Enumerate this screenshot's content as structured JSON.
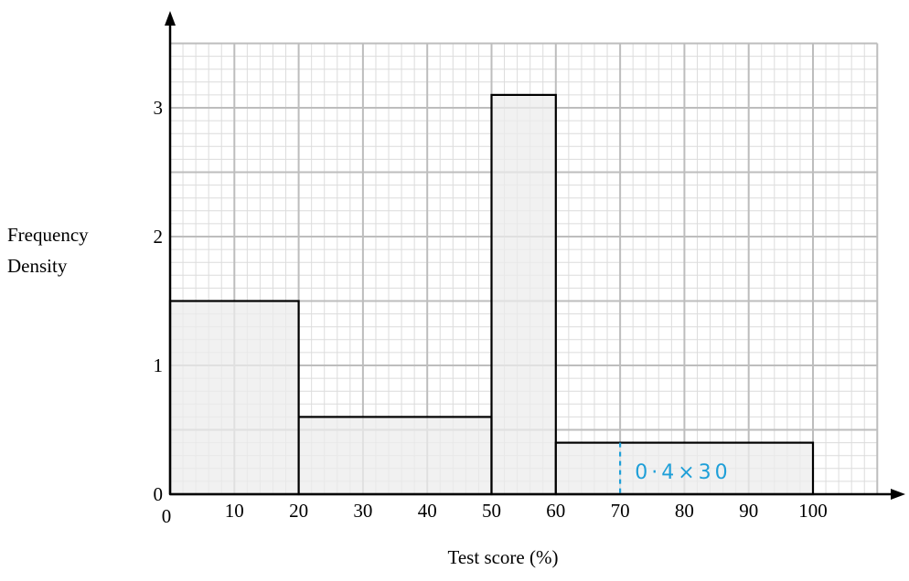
{
  "chart_data": {
    "type": "histogram",
    "title": "",
    "xlabel": "Test score (%)",
    "ylabel_lines": [
      "Frequency",
      "Density"
    ],
    "xlim": [
      0,
      110
    ],
    "ylim": [
      0,
      3.5
    ],
    "grid": true,
    "x_ticks": [
      0,
      10,
      20,
      30,
      40,
      50,
      60,
      70,
      80,
      90,
      100
    ],
    "y_ticks": [
      0,
      1,
      2,
      3
    ],
    "bars": [
      {
        "x0": 0,
        "x1": 20,
        "density": 1.5
      },
      {
        "x0": 20,
        "x1": 50,
        "density": 0.6
      },
      {
        "x0": 50,
        "x1": 60,
        "density": 3.1
      },
      {
        "x0": 60,
        "x1": 100,
        "density": 0.4
      }
    ],
    "annotation": {
      "text": "0·4×30",
      "dashed_x": 70,
      "color": "#1e9fd8"
    },
    "colors": {
      "bar_fill": "#ececec",
      "grid_major": "#bdbdbd",
      "grid_minor": "#dcdcdc"
    }
  }
}
